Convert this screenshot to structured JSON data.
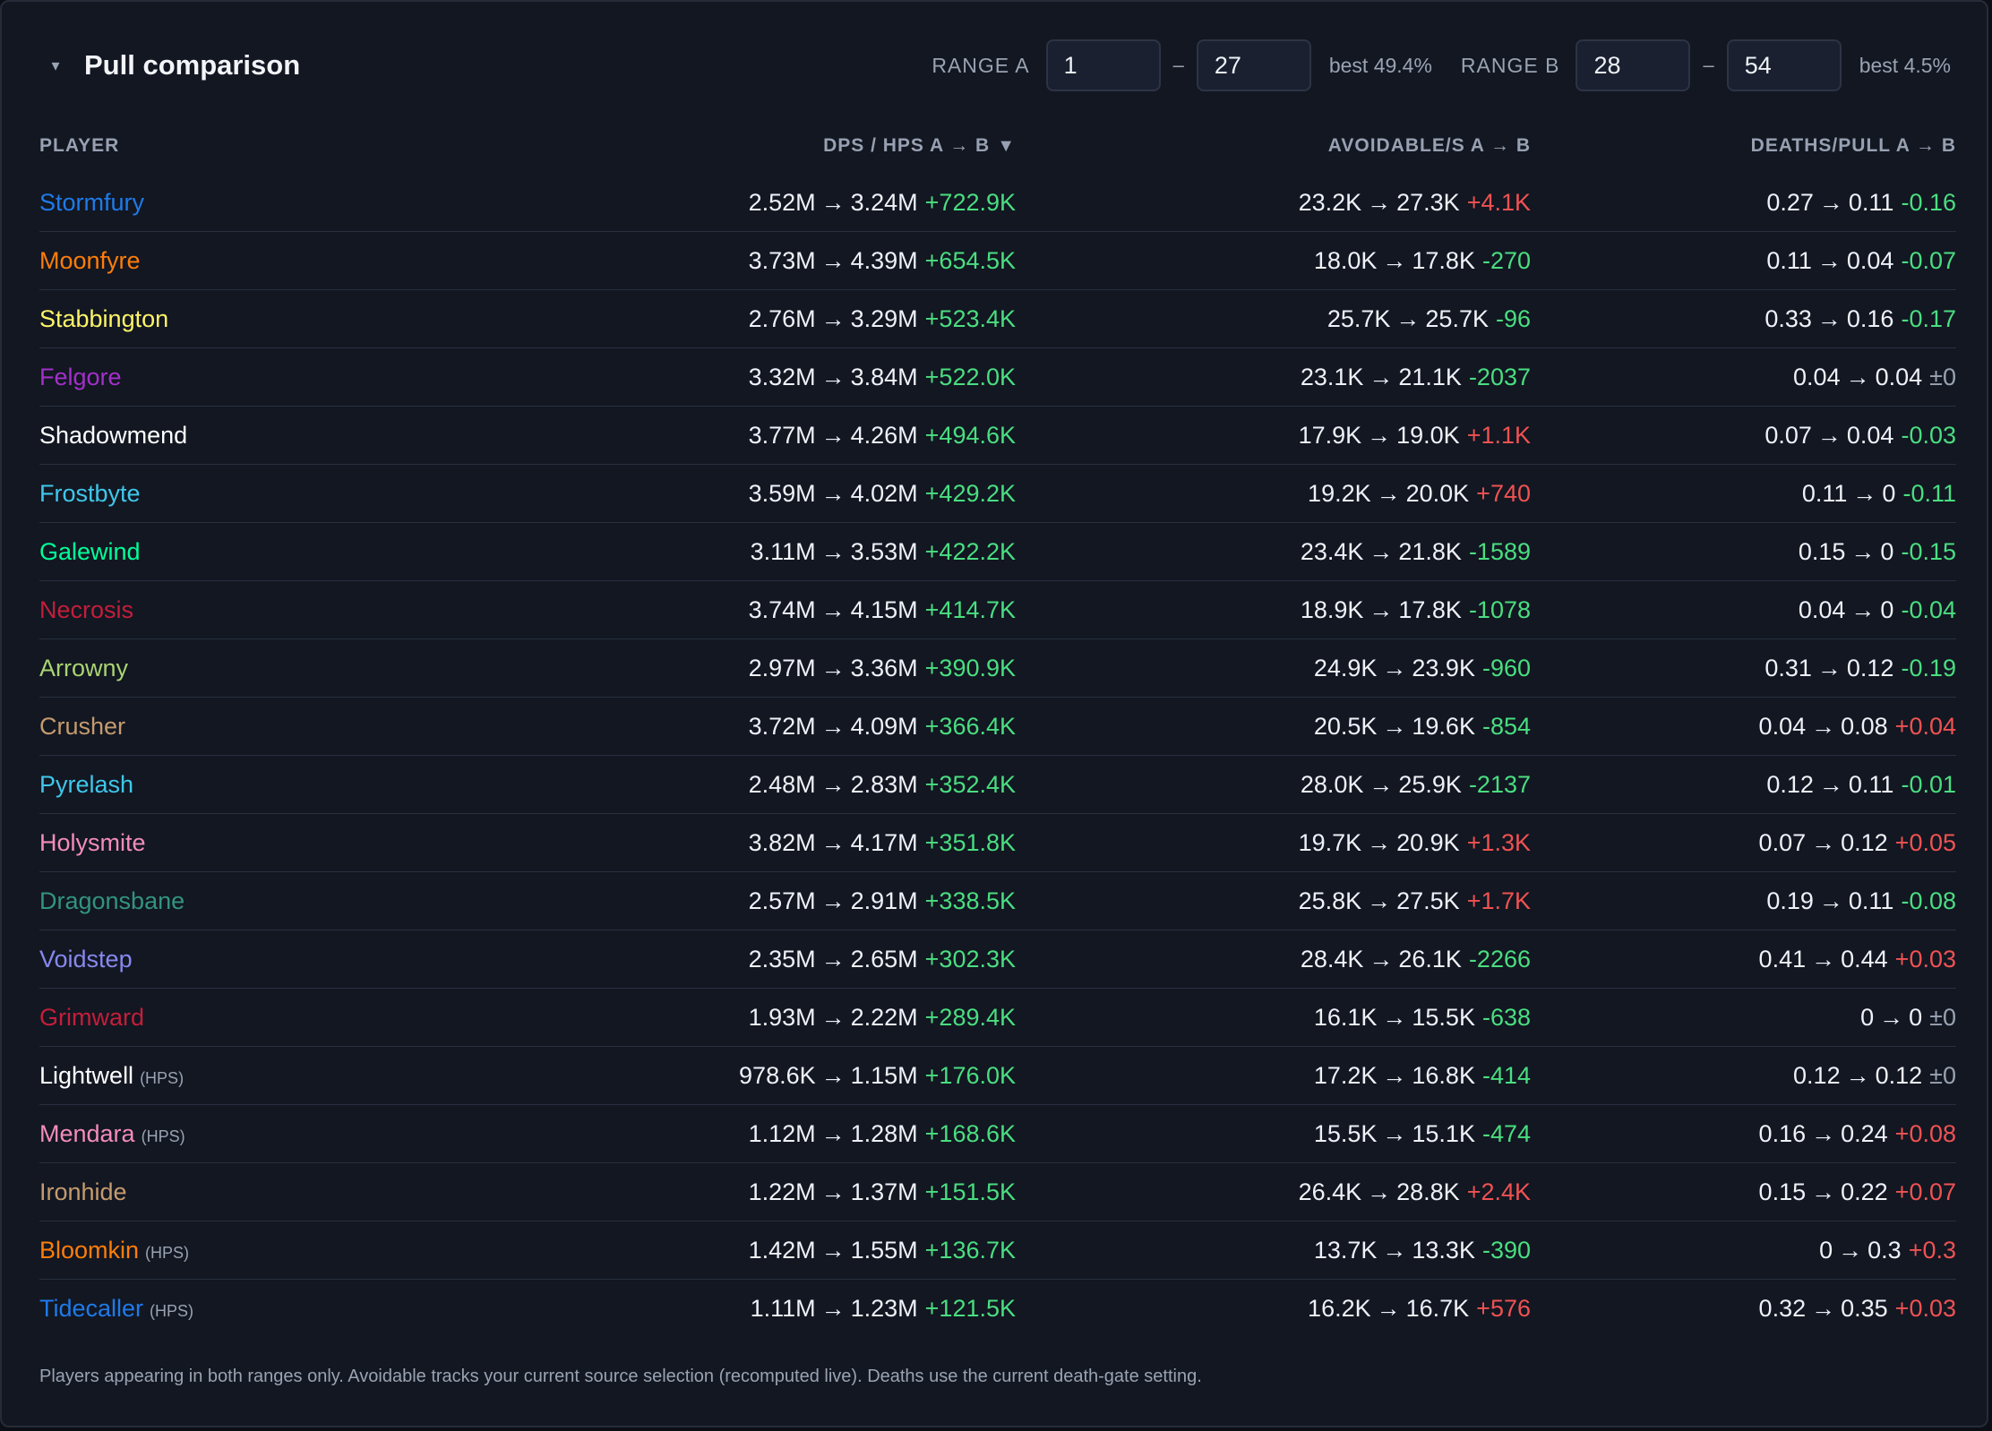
{
  "panel": {
    "title": "Pull comparison",
    "collapse_icon": "▾"
  },
  "range_a": {
    "label": "RANGE A",
    "from": "1",
    "to": "27",
    "dash": "–",
    "best": "best 49.4%"
  },
  "range_b": {
    "label": "RANGE B",
    "from": "28",
    "to": "54",
    "dash": "–",
    "best": "best 4.5%"
  },
  "columns": {
    "player": "PLAYER",
    "dps": "DPS / HPS A → B",
    "dps_sort_icon": "▼",
    "avoidable": "AVOIDABLE/S A → B",
    "deaths": "DEATHS/PULL A → B"
  },
  "arrow": "→",
  "rows": [
    {
      "name": "Stormfury",
      "color": "#1f7ae8",
      "tag": "",
      "dps_a": "2.52M",
      "dps_b": "3.24M",
      "dps_d": "+722.9K",
      "dps_c": "pos",
      "avo_a": "23.2K",
      "avo_b": "27.3K",
      "avo_d": "+4.1K",
      "avo_c": "neg",
      "dth_a": "0.27",
      "dth_b": "0.11",
      "dth_d": "-0.16",
      "dth_c": "pos"
    },
    {
      "name": "Moonfyre",
      "color": "#ff7d0a",
      "tag": "",
      "dps_a": "3.73M",
      "dps_b": "4.39M",
      "dps_d": "+654.5K",
      "dps_c": "pos",
      "avo_a": "18.0K",
      "avo_b": "17.8K",
      "avo_d": "-270",
      "avo_c": "pos",
      "dth_a": "0.11",
      "dth_b": "0.04",
      "dth_d": "-0.07",
      "dth_c": "pos"
    },
    {
      "name": "Stabbington",
      "color": "#fff468",
      "tag": "",
      "dps_a": "2.76M",
      "dps_b": "3.29M",
      "dps_d": "+523.4K",
      "dps_c": "pos",
      "avo_a": "25.7K",
      "avo_b": "25.7K",
      "avo_d": "-96",
      "avo_c": "pos",
      "dth_a": "0.33",
      "dth_b": "0.16",
      "dth_d": "-0.17",
      "dth_c": "pos"
    },
    {
      "name": "Felgore",
      "color": "#a330c9",
      "tag": "",
      "dps_a": "3.32M",
      "dps_b": "3.84M",
      "dps_d": "+522.0K",
      "dps_c": "pos",
      "avo_a": "23.1K",
      "avo_b": "21.1K",
      "avo_d": "-2037",
      "avo_c": "pos",
      "dth_a": "0.04",
      "dth_b": "0.04",
      "dth_d": "±0",
      "dth_c": "neu"
    },
    {
      "name": "Shadowmend",
      "color": "#ffffff",
      "tag": "",
      "dps_a": "3.77M",
      "dps_b": "4.26M",
      "dps_d": "+494.6K",
      "dps_c": "pos",
      "avo_a": "17.9K",
      "avo_b": "19.0K",
      "avo_d": "+1.1K",
      "avo_c": "neg",
      "dth_a": "0.07",
      "dth_b": "0.04",
      "dth_d": "-0.03",
      "dth_c": "pos"
    },
    {
      "name": "Frostbyte",
      "color": "#3fc7eb",
      "tag": "",
      "dps_a": "3.59M",
      "dps_b": "4.02M",
      "dps_d": "+429.2K",
      "dps_c": "pos",
      "avo_a": "19.2K",
      "avo_b": "20.0K",
      "avo_d": "+740",
      "avo_c": "neg",
      "dth_a": "0.11",
      "dth_b": "0",
      "dth_d": "-0.11",
      "dth_c": "pos"
    },
    {
      "name": "Galewind",
      "color": "#00ff98",
      "tag": "",
      "dps_a": "3.11M",
      "dps_b": "3.53M",
      "dps_d": "+422.2K",
      "dps_c": "pos",
      "avo_a": "23.4K",
      "avo_b": "21.8K",
      "avo_d": "-1589",
      "avo_c": "pos",
      "dth_a": "0.15",
      "dth_b": "0",
      "dth_d": "-0.15",
      "dth_c": "pos"
    },
    {
      "name": "Necrosis",
      "color": "#c41e3a",
      "tag": "",
      "dps_a": "3.74M",
      "dps_b": "4.15M",
      "dps_d": "+414.7K",
      "dps_c": "pos",
      "avo_a": "18.9K",
      "avo_b": "17.8K",
      "avo_d": "-1078",
      "avo_c": "pos",
      "dth_a": "0.04",
      "dth_b": "0",
      "dth_d": "-0.04",
      "dth_c": "pos"
    },
    {
      "name": "Arrowny",
      "color": "#aad372",
      "tag": "",
      "dps_a": "2.97M",
      "dps_b": "3.36M",
      "dps_d": "+390.9K",
      "dps_c": "pos",
      "avo_a": "24.9K",
      "avo_b": "23.9K",
      "avo_d": "-960",
      "avo_c": "pos",
      "dth_a": "0.31",
      "dth_b": "0.12",
      "dth_d": "-0.19",
      "dth_c": "pos"
    },
    {
      "name": "Crusher",
      "color": "#c69b6d",
      "tag": "",
      "dps_a": "3.72M",
      "dps_b": "4.09M",
      "dps_d": "+366.4K",
      "dps_c": "pos",
      "avo_a": "20.5K",
      "avo_b": "19.6K",
      "avo_d": "-854",
      "avo_c": "pos",
      "dth_a": "0.04",
      "dth_b": "0.08",
      "dth_d": "+0.04",
      "dth_c": "neg"
    },
    {
      "name": "Pyrelash",
      "color": "#3fc7eb",
      "tag": "",
      "dps_a": "2.48M",
      "dps_b": "2.83M",
      "dps_d": "+352.4K",
      "dps_c": "pos",
      "avo_a": "28.0K",
      "avo_b": "25.9K",
      "avo_d": "-2137",
      "avo_c": "pos",
      "dth_a": "0.12",
      "dth_b": "0.11",
      "dth_d": "-0.01",
      "dth_c": "pos"
    },
    {
      "name": "Holysmite",
      "color": "#f48cba",
      "tag": "",
      "dps_a": "3.82M",
      "dps_b": "4.17M",
      "dps_d": "+351.8K",
      "dps_c": "pos",
      "avo_a": "19.7K",
      "avo_b": "20.9K",
      "avo_d": "+1.3K",
      "avo_c": "neg",
      "dth_a": "0.07",
      "dth_b": "0.12",
      "dth_d": "+0.05",
      "dth_c": "neg"
    },
    {
      "name": "Dragonsbane",
      "color": "#33937f",
      "tag": "",
      "dps_a": "2.57M",
      "dps_b": "2.91M",
      "dps_d": "+338.5K",
      "dps_c": "pos",
      "avo_a": "25.8K",
      "avo_b": "27.5K",
      "avo_d": "+1.7K",
      "avo_c": "neg",
      "dth_a": "0.19",
      "dth_b": "0.11",
      "dth_d": "-0.08",
      "dth_c": "pos"
    },
    {
      "name": "Voidstep",
      "color": "#8788ee",
      "tag": "",
      "dps_a": "2.35M",
      "dps_b": "2.65M",
      "dps_d": "+302.3K",
      "dps_c": "pos",
      "avo_a": "28.4K",
      "avo_b": "26.1K",
      "avo_d": "-2266",
      "avo_c": "pos",
      "dth_a": "0.41",
      "dth_b": "0.44",
      "dth_d": "+0.03",
      "dth_c": "neg"
    },
    {
      "name": "Grimward",
      "color": "#c41e3a",
      "tag": "",
      "dps_a": "1.93M",
      "dps_b": "2.22M",
      "dps_d": "+289.4K",
      "dps_c": "pos",
      "avo_a": "16.1K",
      "avo_b": "15.5K",
      "avo_d": "-638",
      "avo_c": "pos",
      "dth_a": "0",
      "dth_b": "0",
      "dth_d": "±0",
      "dth_c": "neu"
    },
    {
      "name": "Lightwell",
      "color": "#ffffff",
      "tag": "(HPS)",
      "dps_a": "978.6K",
      "dps_b": "1.15M",
      "dps_d": "+176.0K",
      "dps_c": "pos",
      "avo_a": "17.2K",
      "avo_b": "16.8K",
      "avo_d": "-414",
      "avo_c": "pos",
      "dth_a": "0.12",
      "dth_b": "0.12",
      "dth_d": "±0",
      "dth_c": "neu"
    },
    {
      "name": "Mendara",
      "color": "#f48cba",
      "tag": "(HPS)",
      "dps_a": "1.12M",
      "dps_b": "1.28M",
      "dps_d": "+168.6K",
      "dps_c": "pos",
      "avo_a": "15.5K",
      "avo_b": "15.1K",
      "avo_d": "-474",
      "avo_c": "pos",
      "dth_a": "0.16",
      "dth_b": "0.24",
      "dth_d": "+0.08",
      "dth_c": "neg"
    },
    {
      "name": "Ironhide",
      "color": "#c69b6d",
      "tag": "",
      "dps_a": "1.22M",
      "dps_b": "1.37M",
      "dps_d": "+151.5K",
      "dps_c": "pos",
      "avo_a": "26.4K",
      "avo_b": "28.8K",
      "avo_d": "+2.4K",
      "avo_c": "neg",
      "dth_a": "0.15",
      "dth_b": "0.22",
      "dth_d": "+0.07",
      "dth_c": "neg"
    },
    {
      "name": "Bloomkin",
      "color": "#ff7d0a",
      "tag": "(HPS)",
      "dps_a": "1.42M",
      "dps_b": "1.55M",
      "dps_d": "+136.7K",
      "dps_c": "pos",
      "avo_a": "13.7K",
      "avo_b": "13.3K",
      "avo_d": "-390",
      "avo_c": "pos",
      "dth_a": "0",
      "dth_b": "0.3",
      "dth_d": "+0.3",
      "dth_c": "neg"
    },
    {
      "name": "Tidecaller",
      "color": "#1f7ae8",
      "tag": "(HPS)",
      "dps_a": "1.11M",
      "dps_b": "1.23M",
      "dps_d": "+121.5K",
      "dps_c": "pos",
      "avo_a": "16.2K",
      "avo_b": "16.7K",
      "avo_d": "+576",
      "avo_c": "neg",
      "dth_a": "0.32",
      "dth_b": "0.35",
      "dth_d": "+0.03",
      "dth_c": "neg"
    }
  ],
  "footnote": "Players appearing in both ranges only. Avoidable tracks your current source selection (recomputed live). Deaths use the current death-gate setting."
}
